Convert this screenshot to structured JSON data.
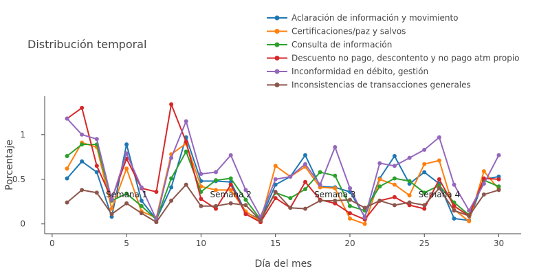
{
  "chart_data": {
    "type": "line",
    "title": "Distribución temporal",
    "xlabel": "Día del mes",
    "ylabel": "Porcentaje",
    "xlim": [
      -0.5,
      31.5
    ],
    "ylim": [
      -0.11,
      1.43
    ],
    "x_ticks": [
      0,
      5,
      10,
      15,
      20,
      25,
      30
    ],
    "y_ticks": [
      0,
      0.5,
      1
    ],
    "y_tick_labels": [
      "0",
      "0.5",
      "1"
    ],
    "grid": false,
    "legend_position": "top-right",
    "x": [
      1,
      2,
      3,
      4,
      5,
      6,
      7,
      8,
      9,
      10,
      11,
      12,
      13,
      14,
      15,
      16,
      17,
      18,
      19,
      20,
      21,
      22,
      23,
      24,
      25,
      26,
      27,
      28,
      29,
      30
    ],
    "series": [
      {
        "name": "Aclaración de información y movimiento",
        "color": "#1f77b4",
        "values": [
          0.51,
          0.7,
          0.58,
          0.08,
          0.89,
          0.26,
          0.05,
          0.41,
          0.97,
          0.48,
          0.48,
          0.47,
          0.13,
          0.05,
          0.44,
          0.53,
          0.77,
          0.42,
          0.41,
          0.36,
          0.08,
          0.51,
          0.76,
          0.45,
          0.58,
          0.45,
          0.06,
          0.04,
          0.5,
          0.53
        ]
      },
      {
        "name": "Certificaciones/paz y salvos",
        "color": "#ff7f0e",
        "values": [
          0.62,
          0.91,
          0.86,
          0.17,
          0.62,
          0.14,
          0.07,
          0.78,
          0.9,
          0.42,
          0.38,
          0.38,
          0.14,
          0.03,
          0.65,
          0.53,
          0.64,
          0.41,
          0.4,
          0.06,
          0.0,
          0.5,
          0.44,
          0.32,
          0.67,
          0.71,
          0.16,
          0.03,
          0.59,
          0.39
        ]
      },
      {
        "name": "Consulta de información",
        "color": "#2ca02c",
        "values": [
          0.76,
          0.89,
          0.89,
          0.26,
          0.34,
          0.2,
          0.05,
          0.51,
          0.81,
          0.36,
          0.49,
          0.51,
          0.27,
          0.05,
          0.35,
          0.29,
          0.39,
          0.58,
          0.54,
          0.2,
          0.15,
          0.42,
          0.51,
          0.48,
          0.35,
          0.43,
          0.24,
          0.1,
          0.49,
          0.42
        ]
      },
      {
        "name": "Descuento no pago, descontento y no pago atm propio",
        "color": "#d62728",
        "values": [
          1.18,
          1.3,
          0.65,
          0.28,
          0.73,
          0.4,
          0.36,
          1.34,
          0.92,
          0.28,
          0.17,
          0.44,
          0.11,
          0.02,
          0.29,
          0.18,
          0.47,
          0.27,
          0.23,
          0.12,
          0.05,
          0.26,
          0.3,
          0.21,
          0.17,
          0.5,
          0.2,
          0.09,
          0.51,
          0.5
        ]
      },
      {
        "name": "Inconformidad en débito, gestión",
        "color": "#9467bd",
        "values": [
          1.18,
          1.0,
          0.95,
          0.27,
          0.79,
          0.41,
          0.05,
          0.74,
          1.15,
          0.56,
          0.58,
          0.77,
          0.38,
          0.08,
          0.5,
          0.53,
          0.67,
          0.44,
          0.86,
          0.4,
          0.07,
          0.68,
          0.65,
          0.74,
          0.83,
          0.97,
          0.44,
          0.15,
          0.45,
          0.77
        ]
      },
      {
        "name": "Inconsistencias de transacciones generales",
        "color": "#8c564b",
        "values": [
          0.24,
          0.38,
          0.35,
          0.11,
          0.23,
          0.12,
          0.02,
          0.26,
          0.44,
          0.2,
          0.2,
          0.23,
          0.21,
          0.04,
          0.36,
          0.18,
          0.17,
          0.26,
          0.26,
          0.27,
          0.18,
          0.26,
          0.21,
          0.24,
          0.21,
          0.4,
          0.15,
          0.09,
          0.33,
          0.38
        ]
      }
    ],
    "annotations": [
      {
        "text": "Semana 1",
        "x": 5,
        "y": 0.33
      },
      {
        "text": "Semana 2",
        "x": 12,
        "y": 0.33
      },
      {
        "text": "Semana 3",
        "x": 19,
        "y": 0.33
      },
      {
        "text": "Semana 4",
        "x": 26,
        "y": 0.33
      }
    ]
  }
}
